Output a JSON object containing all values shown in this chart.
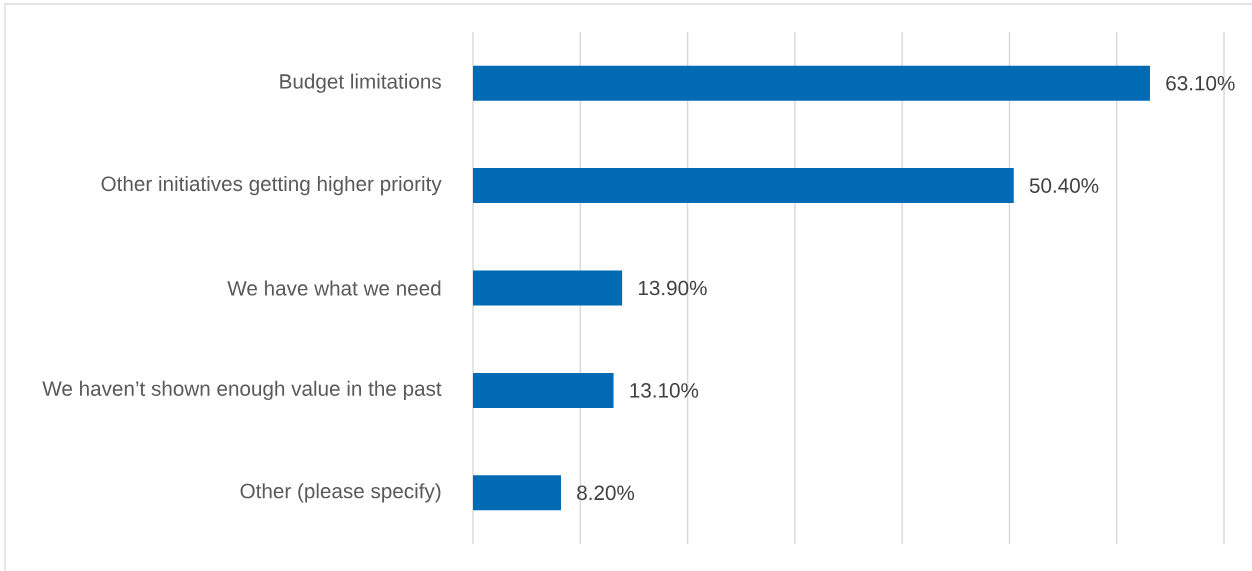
{
  "chart_data": {
    "type": "bar",
    "orientation": "horizontal",
    "categories": [
      "Budget limitations",
      "Other initiatives getting higher priority",
      "We have what we need",
      "We haven’t shown enough value in the past",
      "Other (please specify)"
    ],
    "values": [
      63.1,
      50.4,
      13.9,
      13.1,
      8.2
    ],
    "value_labels": [
      "63.10%",
      "50.40%",
      "13.90%",
      "13.10%",
      "8.20%"
    ],
    "color": "#006ab4",
    "xlim": [
      0,
      70
    ],
    "xticks": [
      0,
      10,
      20,
      30,
      40,
      50,
      60,
      70
    ],
    "tick_labels": "y",
    "grid": "x"
  }
}
